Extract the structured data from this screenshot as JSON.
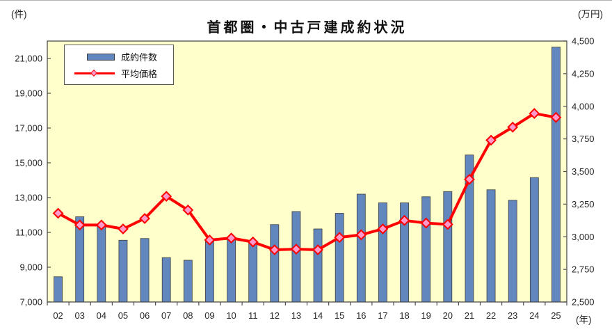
{
  "title": "首都圏・中古戸建成約状況",
  "axis_units": {
    "left": "(件)",
    "right": "(万円)",
    "x": "(年)"
  },
  "legend": {
    "items": [
      {
        "label": "成約件数",
        "type": "bar"
      },
      {
        "label": "平均価格",
        "type": "line"
      }
    ]
  },
  "colors": {
    "plot_bg": "#FFFFCC",
    "bar_fill": "#6187BE",
    "bar_stroke": "#3F3F3F",
    "line": "#FF0000",
    "marker_fill": "#FF99CC",
    "marker_stroke": "#FF0000",
    "axis": "#4D4D4D",
    "text": "#262626"
  },
  "chart_data": {
    "type": "bar",
    "combo": "bar+line dual axis",
    "title": "首都圏・中古戸建成約状況",
    "categories": [
      "02",
      "03",
      "04",
      "05",
      "06",
      "07",
      "08",
      "09",
      "10",
      "11",
      "12",
      "13",
      "14",
      "15",
      "16",
      "17",
      "18",
      "19",
      "20",
      "21",
      "22",
      "23",
      "24",
      "25"
    ],
    "series": [
      {
        "name": "成約件数",
        "type": "bar",
        "axis": "left",
        "unit": "件",
        "values": [
          8450,
          11900,
          11350,
          10550,
          10650,
          9550,
          9400,
          10500,
          10600,
          10450,
          11450,
          12200,
          11200,
          12100,
          13200,
          12700,
          12700,
          13050,
          13350,
          15450,
          13450,
          12850,
          14150,
          21650
        ]
      },
      {
        "name": "平均価格",
        "type": "line",
        "marker": "diamond",
        "axis": "right",
        "unit": "万円",
        "values": [
          3180,
          3090,
          3090,
          3060,
          3140,
          3310,
          3205,
          2975,
          2990,
          2960,
          2900,
          2905,
          2900,
          2995,
          3015,
          3060,
          3125,
          3105,
          3095,
          3440,
          3740,
          3840,
          3945,
          3915
        ]
      }
    ],
    "left_axis": {
      "label": "(件)",
      "min": 7000,
      "max": 22000,
      "tick_step": 2000,
      "tick_labels": [
        "7,000",
        "9,000",
        "11,000",
        "13,000",
        "15,000",
        "17,000",
        "19,000",
        "21,000"
      ]
    },
    "right_axis": {
      "label": "(万円)",
      "min": 2500,
      "max": 4500,
      "tick_step": 250,
      "tick_labels": [
        "2,500",
        "2,750",
        "3,000",
        "3,250",
        "3,500",
        "3,750",
        "4,000",
        "4,250",
        "4,500"
      ]
    },
    "x_axis": {
      "label": "(年)"
    },
    "grid": false,
    "legend_position": "top-left-inside"
  }
}
